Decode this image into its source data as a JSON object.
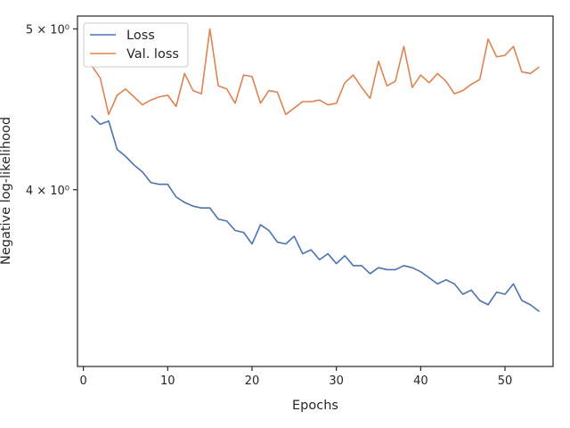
{
  "chart_data": {
    "type": "line",
    "xlabel": "Epochs",
    "ylabel": "Negative log-likelihood",
    "xlim": [
      -0.7,
      55.7
    ],
    "ylim": [
      3.13,
      5.09
    ],
    "yscale": "log",
    "grid": false,
    "legend_position": "top-left",
    "x_ticks": [
      0,
      10,
      20,
      30,
      40,
      50
    ],
    "x_tick_labels": [
      "0",
      "10",
      "20",
      "30",
      "40",
      "50"
    ],
    "y_ticks": [
      4,
      5
    ],
    "y_tick_labels": [
      "4 × 10⁰",
      "5 × 10⁰"
    ],
    "x": [
      1,
      2,
      3,
      4,
      5,
      6,
      7,
      8,
      9,
      10,
      11,
      12,
      13,
      14,
      15,
      16,
      17,
      18,
      19,
      20,
      21,
      22,
      23,
      24,
      25,
      26,
      27,
      28,
      29,
      30,
      31,
      32,
      33,
      34,
      35,
      36,
      37,
      38,
      39,
      40,
      41,
      42,
      43,
      44,
      45,
      46,
      47,
      48,
      49,
      50,
      51,
      52,
      53,
      54
    ],
    "series": [
      {
        "name": "Loss",
        "color": "#4c72b0",
        "values": [
          4.43,
          4.38,
          4.4,
          4.23,
          4.19,
          4.14,
          4.1,
          4.04,
          4.03,
          4.03,
          3.96,
          3.93,
          3.91,
          3.9,
          3.9,
          3.84,
          3.83,
          3.78,
          3.77,
          3.71,
          3.81,
          3.78,
          3.72,
          3.71,
          3.75,
          3.66,
          3.68,
          3.63,
          3.66,
          3.61,
          3.65,
          3.6,
          3.6,
          3.56,
          3.59,
          3.58,
          3.58,
          3.6,
          3.59,
          3.57,
          3.54,
          3.51,
          3.53,
          3.51,
          3.46,
          3.48,
          3.43,
          3.41,
          3.47,
          3.46,
          3.51,
          3.43,
          3.41,
          3.38
        ]
      },
      {
        "name": "Val. loss",
        "color": "#dd8452",
        "values": [
          4.75,
          4.67,
          4.44,
          4.56,
          4.6,
          4.55,
          4.5,
          4.53,
          4.55,
          4.56,
          4.49,
          4.7,
          4.59,
          4.57,
          5.0,
          4.62,
          4.6,
          4.51,
          4.69,
          4.68,
          4.51,
          4.59,
          4.58,
          4.44,
          4.48,
          4.52,
          4.52,
          4.53,
          4.5,
          4.51,
          4.64,
          4.69,
          4.61,
          4.54,
          4.78,
          4.62,
          4.65,
          4.88,
          4.61,
          4.69,
          4.64,
          4.7,
          4.65,
          4.57,
          4.59,
          4.63,
          4.66,
          4.93,
          4.81,
          4.82,
          4.88,
          4.71,
          4.7,
          4.74
        ]
      }
    ]
  }
}
